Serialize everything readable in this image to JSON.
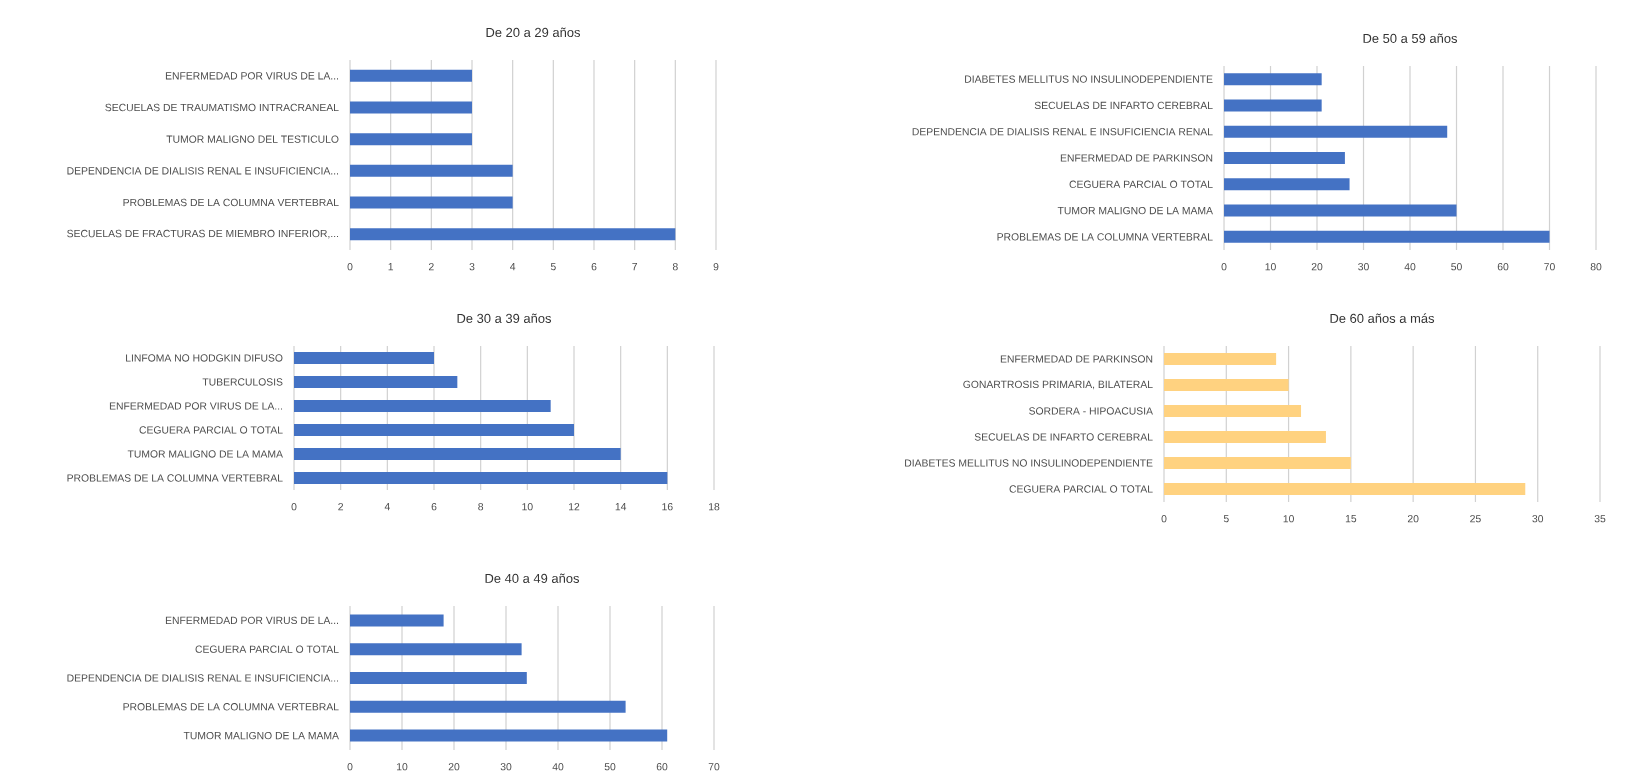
{
  "chart_data": [
    {
      "type": "bar",
      "orientation": "horizontal",
      "title": "De 20 a 29 años",
      "categories": [
        "ENFERMEDAD POR VIRUS DE LA...",
        "SECUELAS DE TRAUMATISMO INTRACRANEAL",
        "TUMOR MALIGNO DEL TESTICULO",
        "DEPENDENCIA DE DIALISIS RENAL E INSUFICIENCIA...",
        "PROBLEMAS DE LA COLUMNA VERTEBRAL",
        "SECUELAS DE FRACTURAS DE MIEMBRO INFERIOR,..."
      ],
      "values": [
        3,
        3,
        3,
        4,
        4,
        8
      ],
      "color": "#4472c4",
      "xlim": [
        0,
        9
      ],
      "xticks": [
        0,
        1,
        2,
        3,
        4,
        5,
        6,
        7,
        8,
        9
      ],
      "grid": "x"
    },
    {
      "type": "bar",
      "orientation": "horizontal",
      "title": "De 50 a 59 años",
      "categories": [
        "DIABETES MELLITUS NO INSULINODEPENDIENTE",
        "SECUELAS DE INFARTO CEREBRAL",
        "DEPENDENCIA DE DIALISIS RENAL E INSUFICIENCIA RENAL",
        "ENFERMEDAD DE PARKINSON",
        "CEGUERA PARCIAL O TOTAL",
        "TUMOR MALIGNO DE LA MAMA",
        "PROBLEMAS DE LA COLUMNA VERTEBRAL"
      ],
      "values": [
        21,
        21,
        48,
        26,
        27,
        50,
        70
      ],
      "color": "#4472c4",
      "xlim": [
        0,
        80
      ],
      "xticks": [
        0,
        10,
        20,
        30,
        40,
        50,
        60,
        70,
        80
      ],
      "grid": "x"
    },
    {
      "type": "bar",
      "orientation": "horizontal",
      "title": "De 30 a 39 años",
      "categories": [
        "LINFOMA NO HODGKIN DIFUSO",
        "TUBERCULOSIS",
        "ENFERMEDAD POR VIRUS DE LA...",
        "CEGUERA PARCIAL O TOTAL",
        "TUMOR MALIGNO DE LA MAMA",
        "PROBLEMAS DE LA COLUMNA VERTEBRAL"
      ],
      "values": [
        6,
        7,
        11,
        12,
        14,
        16
      ],
      "color": "#4472c4",
      "xlim": [
        0,
        18
      ],
      "xticks": [
        0,
        2,
        4,
        6,
        8,
        10,
        12,
        14,
        16,
        18
      ],
      "grid": "x"
    },
    {
      "type": "bar",
      "orientation": "horizontal",
      "title": "De 60 años a más",
      "categories": [
        "ENFERMEDAD DE PARKINSON",
        "GONARTROSIS PRIMARIA, BILATERAL",
        "SORDERA - HIPOACUSIA",
        "SECUELAS DE INFARTO CEREBRAL",
        "DIABETES MELLITUS NO INSULINODEPENDIENTE",
        "CEGUERA PARCIAL O TOTAL"
      ],
      "values": [
        9,
        10,
        11,
        13,
        15,
        29
      ],
      "color": "#ffd280",
      "xlim": [
        0,
        35
      ],
      "xticks": [
        0,
        5,
        10,
        15,
        20,
        25,
        30,
        35
      ],
      "grid": "x"
    },
    {
      "type": "bar",
      "orientation": "horizontal",
      "title": "De 40 a 49 años",
      "categories": [
        "ENFERMEDAD POR VIRUS DE LA...",
        "CEGUERA PARCIAL O TOTAL",
        "DEPENDENCIA DE DIALISIS RENAL E INSUFICIENCIA...",
        "PROBLEMAS DE LA COLUMNA VERTEBRAL",
        "TUMOR MALIGNO DE LA MAMA"
      ],
      "values": [
        18,
        33,
        34,
        53,
        61
      ],
      "color": "#4472c4",
      "xlim": [
        0,
        70
      ],
      "xticks": [
        0,
        10,
        20,
        30,
        40,
        50,
        60,
        70
      ],
      "grid": "x"
    }
  ]
}
